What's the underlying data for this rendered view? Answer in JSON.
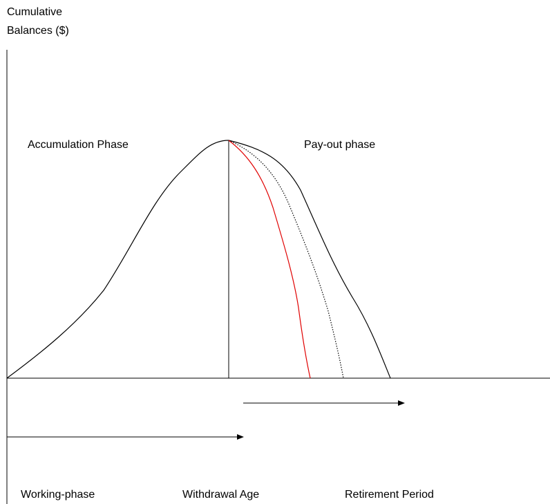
{
  "y_axis_label": [
    "Cumulative",
    "Balances ($)"
  ],
  "annotations": {
    "accumulation": "Accumulation Phase",
    "payout": "Pay-out phase"
  },
  "bottom_labels": [
    "Working-phase",
    "Withdrawal Age",
    "Retirement Period"
  ]
}
